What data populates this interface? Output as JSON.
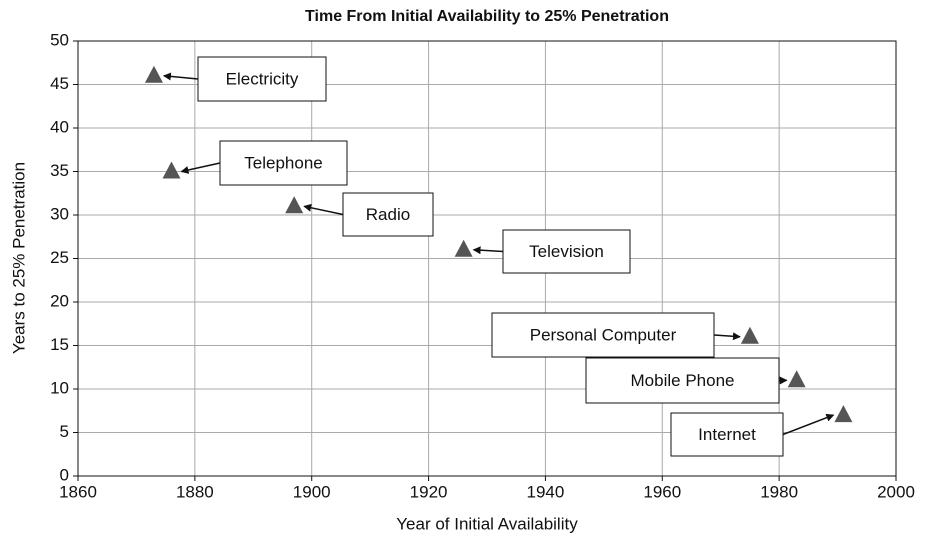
{
  "chart_data": {
    "type": "scatter",
    "title": "Time From Initial Availability to 25% Penetration",
    "x_label": "Year of Initial Availability",
    "y_label": "Years to 25% Penetration",
    "series": [
      {
        "name": null,
        "color": "#555555",
        "x": [
          1873,
          1876,
          1897,
          1926,
          1975,
          1983,
          1991
        ],
        "values": [
          46,
          35,
          31,
          26,
          16,
          11,
          7
        ],
        "labels": [
          "Electricity",
          "Telephone",
          "Radio",
          "Television",
          "Personal Computer",
          "Mobile Phone",
          "Internet"
        ]
      }
    ],
    "xlim": [
      1860,
      2000
    ],
    "xticks": [
      1860,
      1880,
      1900,
      1920,
      1940,
      1960,
      1980,
      2000
    ],
    "ylim": [
      0,
      50
    ],
    "yticks": [
      0,
      5,
      10,
      15,
      20,
      25,
      30,
      35,
      40,
      45,
      50
    ],
    "grid": true
  }
}
